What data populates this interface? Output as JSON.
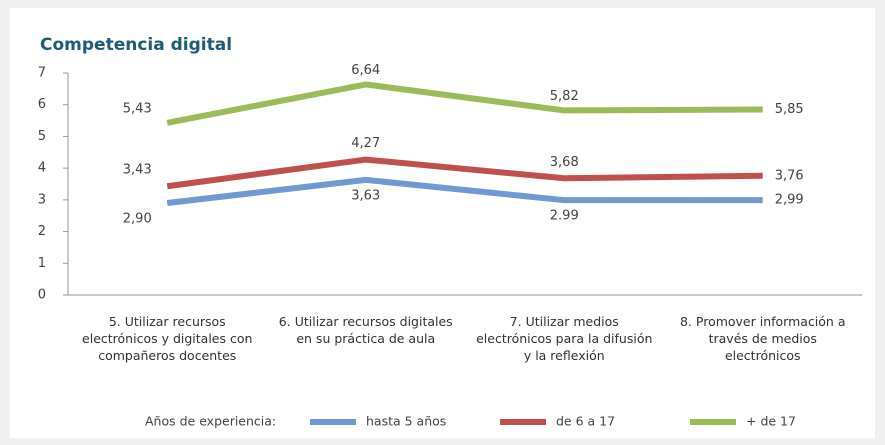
{
  "chart_data": {
    "type": "line",
    "title": "Competencia digital",
    "categories": [
      "5. Utilizar recursos electrónicos y digitales con compañeros docentes",
      "6. Utilizar recursos digitales en su práctica de aula",
      "7. Utilizar medios electrónicos para la difusión y la reflexión",
      "8. Promover información a través de medios electrónicos"
    ],
    "series": [
      {
        "name": "hasta 5 años",
        "color": "#7099d3",
        "values": [
          2.9,
          3.63,
          2.99,
          2.99
        ],
        "value_labels": [
          "2,90",
          "3,63",
          "2.99",
          "2,99"
        ]
      },
      {
        "name": "de 6 a 17",
        "color": "#c0504d",
        "values": [
          3.43,
          4.27,
          3.68,
          3.76
        ],
        "value_labels": [
          "3,43",
          "4,27",
          "3,68",
          "3,76"
        ]
      },
      {
        "name": "+ de 17",
        "color": "#9bbb59",
        "values": [
          5.43,
          6.64,
          5.82,
          5.85
        ],
        "value_labels": [
          "5,43",
          "6,64",
          "5,82",
          "5,85"
        ]
      }
    ],
    "legend_title": "Años de experiencia:",
    "ylim": [
      0,
      7
    ],
    "yticks": [
      0,
      1,
      2,
      3,
      4,
      5,
      6,
      7
    ],
    "grid": false
  }
}
